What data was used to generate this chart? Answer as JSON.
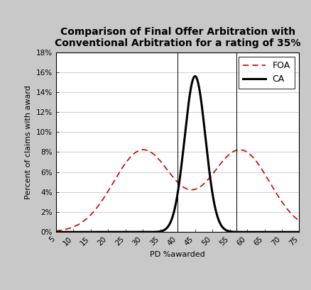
{
  "title": "Comparison of Final Offer Arbitration with\nConventional Arbitration for a rating of 35%",
  "xlabel": "PD %awarded",
  "ylabel": "Percent of claims with award",
  "xlim": [
    5,
    75
  ],
  "ylim": [
    0,
    0.18
  ],
  "xticks": [
    5,
    10,
    15,
    20,
    25,
    30,
    35,
    40,
    45,
    50,
    55,
    60,
    65,
    70,
    75
  ],
  "yticks": [
    0,
    0.02,
    0.04,
    0.06,
    0.08,
    0.1,
    0.12,
    0.14,
    0.16,
    0.18
  ],
  "ytick_labels": [
    "0%",
    "2%",
    "4%",
    "6%",
    "8%",
    "10%",
    "12%",
    "14%",
    "16%",
    "18%"
  ],
  "ca_mean": 45,
  "ca_std": 3.0,
  "ca_peak": 0.156,
  "foa_mean1": 30,
  "foa_std1": 8.5,
  "foa_mean2": 58,
  "foa_std2": 8.5,
  "foa_peak": 0.082,
  "vline1": 40,
  "vline2": 57,
  "foa_color": "#cc0000",
  "ca_color": "black",
  "bg_color": "#c8c8c8",
  "plot_bg": "white",
  "title_fontsize": 10,
  "axis_fontsize": 8,
  "tick_fontsize": 7.5
}
